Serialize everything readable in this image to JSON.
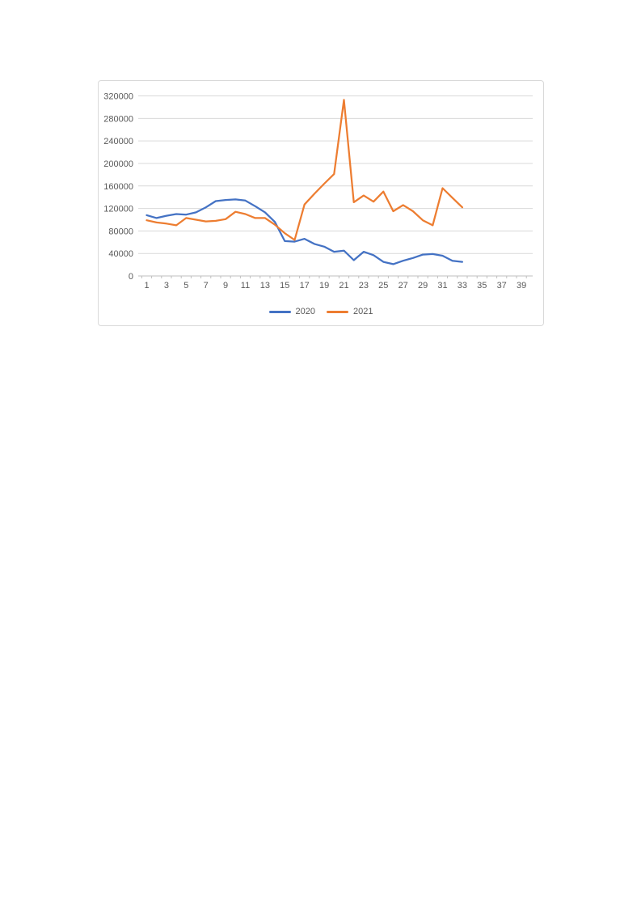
{
  "chart": {
    "frame": {
      "border_color": "#d9d9d9",
      "background": "#ffffff"
    },
    "axis": {
      "line_color": "#bfbfbf",
      "tick_color": "#bfbfbf",
      "gridline_color": "#d9d9d9",
      "label_color": "#595959"
    },
    "legend": [
      {
        "label": "2020",
        "color": "#4472C4"
      },
      {
        "label": "2021",
        "color": "#ED7D31"
      }
    ]
  },
  "chart_data": {
    "type": "line",
    "title": "",
    "xlabel": "",
    "ylabel": "",
    "grid": true,
    "legend_position": "bottom",
    "ylim": [
      0,
      320000
    ],
    "y_tick_step": 40000,
    "y_tick_labels": [
      "0",
      "40000",
      "80000",
      "120000",
      "160000",
      "200000",
      "240000",
      "280000",
      "320000"
    ],
    "x_tick_labels": [
      1,
      3,
      5,
      7,
      9,
      11,
      13,
      15,
      17,
      19,
      21,
      23,
      25,
      27,
      29,
      31,
      33,
      35,
      37,
      39
    ],
    "x_axis_category_count": 40,
    "x": [
      1,
      2,
      3,
      4,
      5,
      6,
      7,
      8,
      9,
      10,
      11,
      12,
      13,
      14,
      15,
      16,
      17,
      18,
      19,
      20,
      21,
      22,
      23,
      24,
      25,
      26,
      27,
      28,
      29,
      30,
      31,
      32,
      33
    ],
    "series": [
      {
        "name": "2020",
        "color": "#4472C4",
        "values": [
          108000,
          103000,
          107000,
          110000,
          109000,
          113000,
          122000,
          133000,
          135000,
          136000,
          134000,
          124000,
          113000,
          96000,
          62000,
          61000,
          66000,
          57000,
          52000,
          43000,
          45000,
          28000,
          43000,
          37000,
          25000,
          21000,
          27000,
          32000,
          38000,
          39000,
          36000,
          27000,
          25000
        ]
      },
      {
        "name": "2021",
        "color": "#ED7D31",
        "values": [
          99000,
          95000,
          93000,
          90000,
          103000,
          100000,
          97000,
          98000,
          101000,
          114000,
          110000,
          103000,
          103000,
          91000,
          76000,
          64000,
          127000,
          146000,
          164000,
          181000,
          313000,
          131000,
          143000,
          132000,
          150000,
          115000,
          126000,
          115000,
          99000,
          90000,
          156000,
          139000,
          122000
        ]
      }
    ]
  }
}
